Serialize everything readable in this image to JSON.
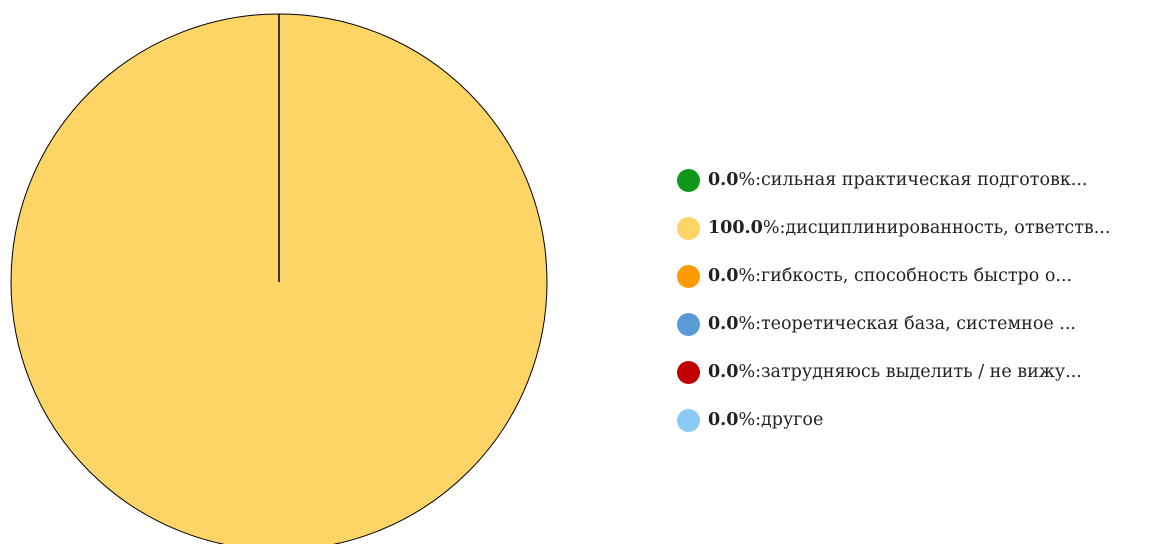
{
  "chart_data": {
    "type": "pie",
    "slices": [
      {
        "percent_label": "0.0",
        "label": "сильная практическая подготовк...",
        "value": 0.0,
        "color": "#109618"
      },
      {
        "percent_label": "100.0",
        "label": "дисциплинированность, ответств...",
        "value": 100.0,
        "color": "#FDD567"
      },
      {
        "percent_label": "0.0",
        "label": "гибкость, способность быстро о...",
        "value": 0.0,
        "color": "#FF9900"
      },
      {
        "percent_label": "0.0",
        "label": "теоретическая база, системное ...",
        "value": 0.0,
        "color": "#5B9BD5"
      },
      {
        "percent_label": "0.0",
        "label": "затрудняюсь выделить / не вижу...",
        "value": 0.0,
        "color": "#C00000"
      },
      {
        "percent_label": "0.0",
        "label": "другое",
        "value": 0.0,
        "color": "#8DC9F5"
      }
    ],
    "legend_position": "right",
    "percent_suffix": "%: "
  }
}
